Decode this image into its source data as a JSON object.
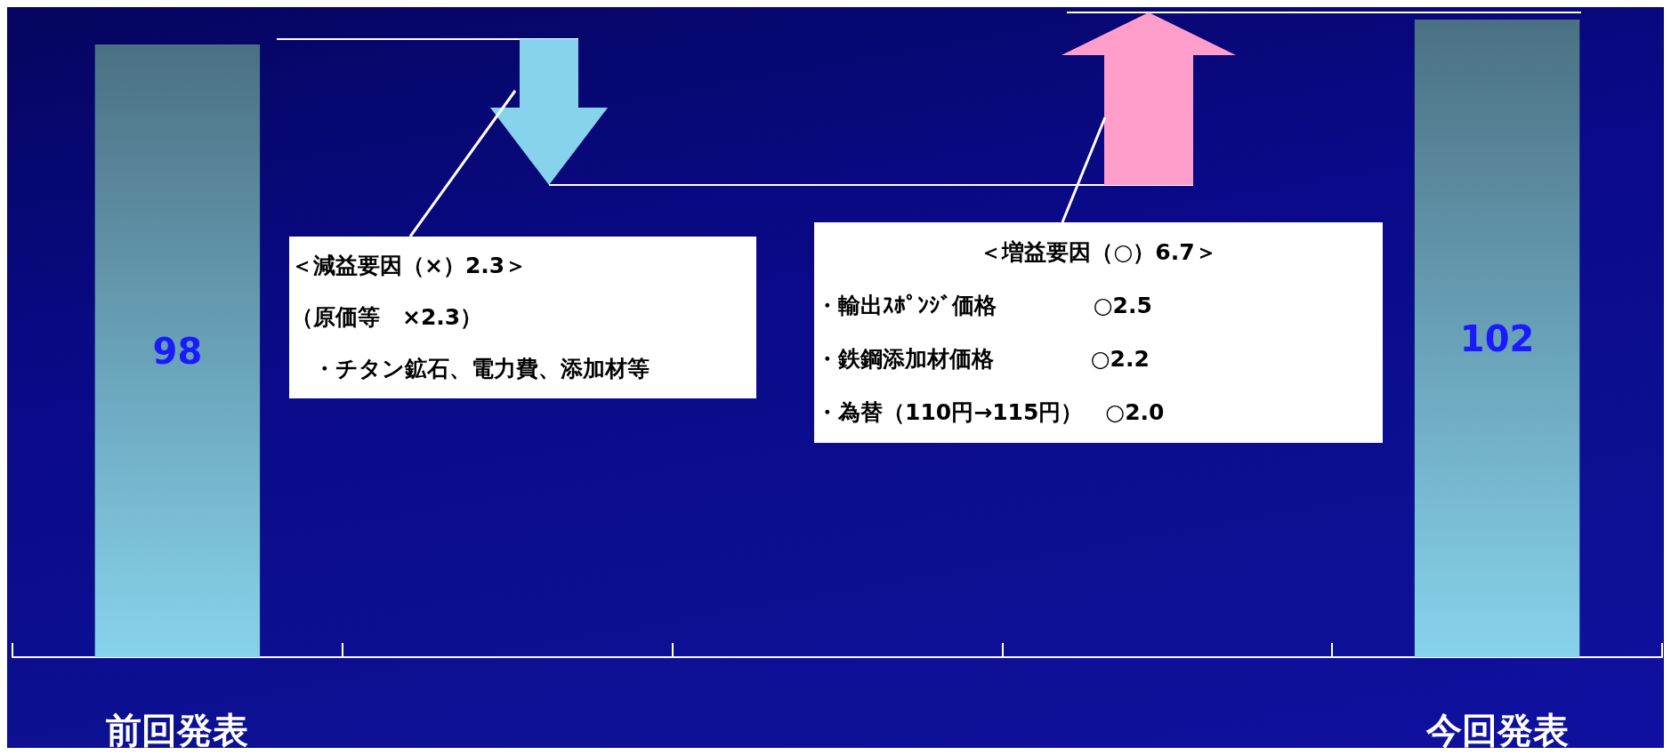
{
  "chart_data": {
    "type": "bar",
    "categories": [
      "前回発表",
      null,
      null,
      null,
      "今回発表"
    ],
    "values": [
      98,
      null,
      null,
      null,
      102
    ],
    "color": "#87d3ec",
    "data_labels": true,
    "annotations": [
      "＜減益要因（×）2.3＞",
      "（原価等　×2.3）",
      "　・チタン鉱石、電力費、添加材等",
      "＜増益要因（○）6.7＞",
      "・輸出ｽﾎﾟﾝｼﾞ価格　　　　 ○2.5",
      "・鉄鋼添加材価格　　　　 ○2.2",
      "・為替（110円→115円）　○2.0"
    ]
  }
}
